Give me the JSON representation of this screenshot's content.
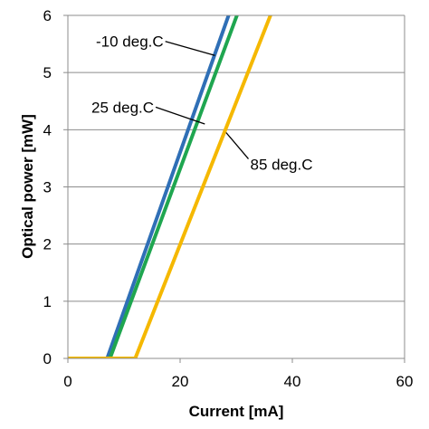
{
  "chart_data": {
    "type": "line",
    "title": "",
    "xlabel": "Current [mA]",
    "ylabel": "Optical power [mW]",
    "xlim": [
      0,
      60
    ],
    "ylim": [
      0,
      6
    ],
    "xticks": [
      "0",
      "20",
      "40",
      "60"
    ],
    "yticks": [
      "0",
      "1",
      "2",
      "3",
      "4",
      "5",
      "6"
    ],
    "grid": "horizontal",
    "legend": "none",
    "series": [
      {
        "name": "-10 deg.C",
        "color": "#2f6fb6",
        "x": [
          0,
          7,
          29
        ],
        "y": [
          0,
          0,
          6.1
        ]
      },
      {
        "name": "25 deg.C",
        "color": "#1fa650",
        "x": [
          0,
          7.5,
          30.5
        ],
        "y": [
          0,
          0,
          6.1
        ]
      },
      {
        "name": "85 deg.C",
        "color": "#f5b800",
        "x": [
          0,
          12,
          36.5
        ],
        "y": [
          0,
          0,
          6.1
        ]
      }
    ],
    "annotations": [
      {
        "text": "-10 deg.C",
        "x": 5,
        "y": 5.45,
        "ax": 26.2,
        "ay": 5.3
      },
      {
        "text": "25 deg.C",
        "x": 4.2,
        "y": 4.3,
        "ax": 24.4,
        "ay": 4.1
      },
      {
        "text": "85 deg.C",
        "x": 32.5,
        "y": 3.3,
        "ax": 28.2,
        "ay": 3.95
      }
    ]
  }
}
